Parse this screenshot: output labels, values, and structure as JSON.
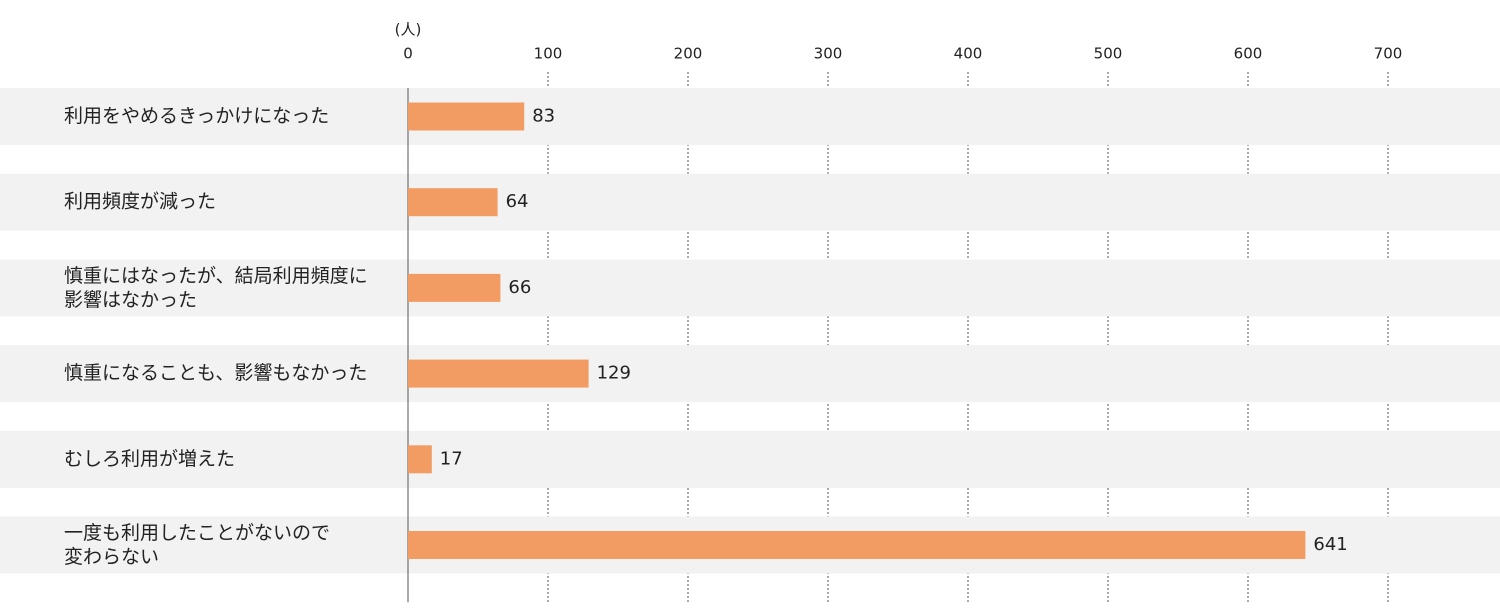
{
  "chart_data": {
    "type": "bar",
    "orientation": "horizontal",
    "x_axis_label": "(人)",
    "categories": [
      "利用をやめるきっかけになった",
      "利用頻度が減った",
      "慎重にはなったが、結局利用頻度に\n影響はなかった",
      "慎重になることも、影響もなかった",
      "むしろ利用が増えた",
      "一度も利用したことがないので\n変わらない"
    ],
    "values": [
      83,
      64,
      66,
      129,
      17,
      641
    ],
    "color": "#f29c63",
    "xlim": [
      0,
      780
    ],
    "xticks": [
      0,
      100,
      200,
      300,
      400,
      500,
      600,
      700
    ],
    "grid": true
  }
}
